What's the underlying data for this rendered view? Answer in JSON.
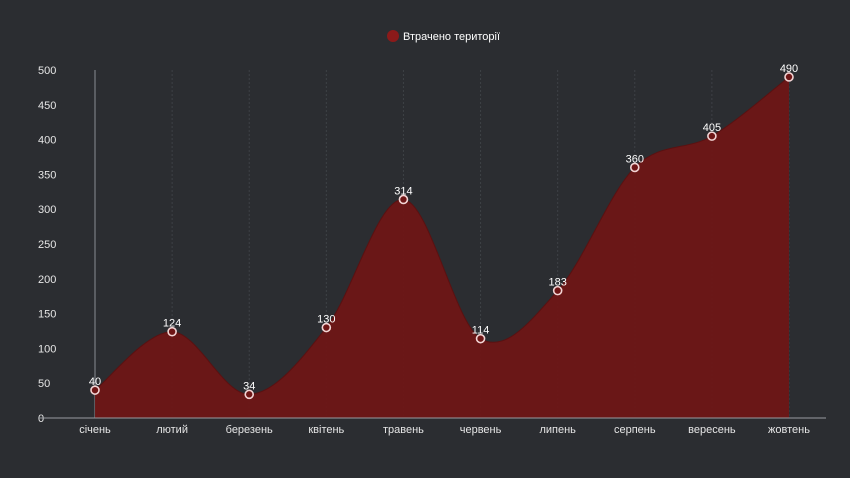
{
  "chart_data": {
    "type": "area",
    "categories": [
      "січень",
      "лютий",
      "березень",
      "квітень",
      "травень",
      "червень",
      "липень",
      "серпень",
      "вересень",
      "жовтень"
    ],
    "series": [
      {
        "name": "Втрачено території",
        "values": [
          40,
          124,
          34,
          130,
          314,
          114,
          183,
          360,
          405,
          490
        ]
      }
    ],
    "ylim": [
      0,
      500
    ],
    "yticks": [
      0,
      50,
      100,
      150,
      200,
      250,
      300,
      350,
      400,
      450,
      500
    ],
    "grid": "vertical",
    "legend": "top-center",
    "colors": {
      "background": "#2b2d31",
      "area": "#6e1616",
      "legend_marker": "#8b1a1a",
      "point_stroke": "#f2d4d4",
      "text": "#ffffff"
    }
  }
}
